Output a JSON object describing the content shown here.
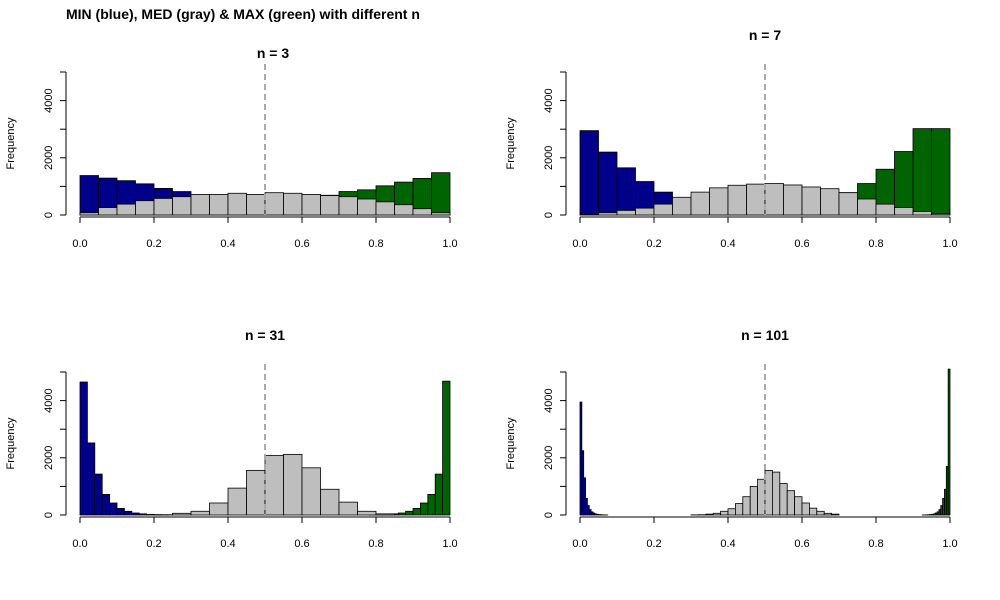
{
  "title": "MIN (blue), MED (gray) & MAX (green) with different n",
  "colors": {
    "min": "#00008B",
    "med": "#BEBEBE",
    "max": "#006400",
    "axis": "#000000",
    "refline": "#AAAAAA"
  },
  "chart_data": [
    {
      "type": "bar",
      "title": "n = 3",
      "ylabel": "Frequency",
      "xlim": [
        0,
        1
      ],
      "ylim": [
        0,
        5000
      ],
      "xticks": [
        "0.0",
        "0.2",
        "0.4",
        "0.6",
        "0.8",
        "1.0"
      ],
      "yticks": [
        "0",
        "2000",
        "4000"
      ],
      "bin_width": 0.05,
      "median_line": 0.5,
      "series": [
        {
          "key": "min",
          "bins": [
            [
              0.0,
              1380
            ],
            [
              0.05,
              1290
            ],
            [
              0.1,
              1200
            ],
            [
              0.15,
              1090
            ],
            [
              0.2,
              930
            ],
            [
              0.25,
              820
            ],
            [
              0.3,
              690
            ],
            [
              0.35,
              580
            ],
            [
              0.4,
              450
            ],
            [
              0.45,
              340
            ],
            [
              0.5,
              250
            ],
            [
              0.55,
              200
            ],
            [
              0.6,
              120
            ],
            [
              0.65,
              80
            ],
            [
              0.7,
              50
            ],
            [
              0.75,
              30
            ],
            [
              0.8,
              20
            ],
            [
              0.85,
              10
            ],
            [
              0.9,
              5
            ],
            [
              0.95,
              2
            ]
          ]
        },
        {
          "key": "max",
          "bins": [
            [
              0.0,
              2
            ],
            [
              0.05,
              5
            ],
            [
              0.1,
              10
            ],
            [
              0.15,
              20
            ],
            [
              0.2,
              30
            ],
            [
              0.25,
              50
            ],
            [
              0.3,
              80
            ],
            [
              0.35,
              120
            ],
            [
              0.4,
              200
            ],
            [
              0.45,
              250
            ],
            [
              0.5,
              340
            ],
            [
              0.55,
              450
            ],
            [
              0.6,
              580
            ],
            [
              0.65,
              690
            ],
            [
              0.7,
              820
            ],
            [
              0.75,
              880
            ],
            [
              0.8,
              1020
            ],
            [
              0.85,
              1150
            ],
            [
              0.9,
              1280
            ],
            [
              0.95,
              1480
            ]
          ]
        },
        {
          "key": "med",
          "bins": [
            [
              0.0,
              80
            ],
            [
              0.05,
              260
            ],
            [
              0.1,
              380
            ],
            [
              0.15,
              500
            ],
            [
              0.2,
              580
            ],
            [
              0.25,
              640
            ],
            [
              0.3,
              720
            ],
            [
              0.35,
              720
            ],
            [
              0.4,
              760
            ],
            [
              0.45,
              720
            ],
            [
              0.5,
              780
            ],
            [
              0.55,
              760
            ],
            [
              0.6,
              720
            ],
            [
              0.65,
              680
            ],
            [
              0.7,
              640
            ],
            [
              0.75,
              560
            ],
            [
              0.8,
              460
            ],
            [
              0.85,
              360
            ],
            [
              0.9,
              220
            ],
            [
              0.95,
              80
            ]
          ]
        }
      ]
    },
    {
      "type": "bar",
      "title": "n = 7",
      "ylabel": "Frequency",
      "xlim": [
        0,
        1
      ],
      "ylim": [
        0,
        5000
      ],
      "xticks": [
        "0.0",
        "0.2",
        "0.4",
        "0.6",
        "0.8",
        "1.0"
      ],
      "yticks": [
        "0",
        "2000",
        "4000"
      ],
      "bin_width": 0.05,
      "median_line": 0.5,
      "series": [
        {
          "key": "min",
          "bins": [
            [
              0.0,
              2950
            ],
            [
              0.05,
              2200
            ],
            [
              0.1,
              1650
            ],
            [
              0.15,
              1170
            ],
            [
              0.2,
              800
            ],
            [
              0.25,
              560
            ],
            [
              0.3,
              380
            ],
            [
              0.35,
              250
            ],
            [
              0.4,
              160
            ],
            [
              0.45,
              100
            ],
            [
              0.5,
              60
            ],
            [
              0.55,
              35
            ],
            [
              0.6,
              20
            ],
            [
              0.65,
              10
            ],
            [
              0.7,
              5
            ],
            [
              0.75,
              2
            ],
            [
              0.8,
              1
            ],
            [
              0.85,
              0
            ],
            [
              0.9,
              0
            ],
            [
              0.95,
              0
            ]
          ]
        },
        {
          "key": "max",
          "bins": [
            [
              0.0,
              0
            ],
            [
              0.05,
              0
            ],
            [
              0.1,
              0
            ],
            [
              0.15,
              1
            ],
            [
              0.2,
              2
            ],
            [
              0.25,
              5
            ],
            [
              0.3,
              10
            ],
            [
              0.35,
              20
            ],
            [
              0.4,
              35
            ],
            [
              0.45,
              60
            ],
            [
              0.5,
              100
            ],
            [
              0.55,
              160
            ],
            [
              0.6,
              250
            ],
            [
              0.65,
              380
            ],
            [
              0.7,
              780
            ],
            [
              0.75,
              1100
            ],
            [
              0.8,
              1600
            ],
            [
              0.85,
              2220
            ],
            [
              0.9,
              3020
            ],
            [
              0.95,
              3020
            ]
          ]
        },
        {
          "key": "med",
          "bins": [
            [
              0.0,
              20
            ],
            [
              0.05,
              80
            ],
            [
              0.1,
              160
            ],
            [
              0.15,
              240
            ],
            [
              0.2,
              380
            ],
            [
              0.25,
              620
            ],
            [
              0.3,
              800
            ],
            [
              0.35,
              950
            ],
            [
              0.4,
              1040
            ],
            [
              0.45,
              1080
            ],
            [
              0.5,
              1100
            ],
            [
              0.55,
              1050
            ],
            [
              0.6,
              980
            ],
            [
              0.65,
              920
            ],
            [
              0.7,
              780
            ],
            [
              0.75,
              560
            ],
            [
              0.8,
              380
            ],
            [
              0.85,
              260
            ],
            [
              0.9,
              120
            ],
            [
              0.95,
              40
            ]
          ]
        }
      ]
    },
    {
      "type": "bar",
      "title": "n = 31",
      "ylabel": "Frequency",
      "xlim": [
        0,
        1
      ],
      "ylim": [
        0,
        5000
      ],
      "xticks": [
        "0.0",
        "0.2",
        "0.4",
        "0.6",
        "0.8",
        "1.0"
      ],
      "yticks": [
        "0",
        "2000",
        "4000"
      ],
      "bin_width_min_max": 0.02,
      "bin_width_med": 0.05,
      "median_line": 0.5,
      "series": [
        {
          "key": "min",
          "bins": [
            [
              0.0,
              4650
            ],
            [
              0.02,
              2520
            ],
            [
              0.04,
              1430
            ],
            [
              0.06,
              720
            ],
            [
              0.08,
              420
            ],
            [
              0.1,
              230
            ],
            [
              0.12,
              130
            ],
            [
              0.14,
              70
            ],
            [
              0.16,
              40
            ],
            [
              0.18,
              20
            ],
            [
              0.2,
              10
            ],
            [
              0.22,
              5
            ]
          ]
        },
        {
          "key": "max",
          "bins": [
            [
              0.78,
              5
            ],
            [
              0.8,
              10
            ],
            [
              0.82,
              20
            ],
            [
              0.84,
              40
            ],
            [
              0.86,
              70
            ],
            [
              0.88,
              130
            ],
            [
              0.9,
              230
            ],
            [
              0.92,
              420
            ],
            [
              0.94,
              720
            ],
            [
              0.96,
              1430
            ],
            [
              0.98,
              4680
            ]
          ]
        },
        {
          "key": "med",
          "bins": [
            [
              0.2,
              10
            ],
            [
              0.25,
              60
            ],
            [
              0.3,
              130
            ],
            [
              0.35,
              420
            ],
            [
              0.4,
              940
            ],
            [
              0.45,
              1560
            ],
            [
              0.5,
              2080
            ],
            [
              0.55,
              2120
            ],
            [
              0.6,
              1650
            ],
            [
              0.65,
              900
            ],
            [
              0.7,
              450
            ],
            [
              0.75,
              130
            ],
            [
              0.8,
              40
            ]
          ]
        }
      ]
    },
    {
      "type": "bar",
      "title": "n = 101",
      "ylabel": "Frequency",
      "xlim": [
        0,
        1
      ],
      "ylim": [
        0,
        5000
      ],
      "xticks": [
        "0.0",
        "0.2",
        "0.4",
        "0.6",
        "0.8",
        "1.0"
      ],
      "yticks": [
        "0",
        "2000",
        "4000"
      ],
      "bin_width_min_max": 0.005,
      "bin_width_med": 0.02,
      "median_line": 0.5,
      "series": [
        {
          "key": "min",
          "bins": [
            [
              0.0,
              3950
            ],
            [
              0.005,
              2250
            ],
            [
              0.01,
              1300
            ],
            [
              0.015,
              580
            ],
            [
              0.02,
              330
            ],
            [
              0.025,
              190
            ],
            [
              0.03,
              110
            ],
            [
              0.035,
              70
            ],
            [
              0.04,
              40
            ],
            [
              0.045,
              25
            ],
            [
              0.05,
              15
            ],
            [
              0.055,
              10
            ],
            [
              0.06,
              6
            ],
            [
              0.065,
              4
            ],
            [
              0.07,
              2
            ]
          ]
        },
        {
          "key": "max",
          "bins": [
            [
              0.925,
              2
            ],
            [
              0.93,
              4
            ],
            [
              0.935,
              6
            ],
            [
              0.94,
              10
            ],
            [
              0.945,
              15
            ],
            [
              0.95,
              25
            ],
            [
              0.955,
              40
            ],
            [
              0.96,
              70
            ],
            [
              0.965,
              110
            ],
            [
              0.97,
              190
            ],
            [
              0.975,
              330
            ],
            [
              0.98,
              580
            ],
            [
              0.985,
              900
            ],
            [
              0.99,
              1700
            ],
            [
              0.995,
              5250
            ]
          ]
        },
        {
          "key": "med",
          "bins": [
            [
              0.3,
              5
            ],
            [
              0.32,
              10
            ],
            [
              0.34,
              30
            ],
            [
              0.36,
              60
            ],
            [
              0.38,
              130
            ],
            [
              0.4,
              220
            ],
            [
              0.42,
              400
            ],
            [
              0.44,
              640
            ],
            [
              0.46,
              1000
            ],
            [
              0.48,
              1250
            ],
            [
              0.5,
              1560
            ],
            [
              0.52,
              1500
            ],
            [
              0.54,
              1100
            ],
            [
              0.56,
              850
            ],
            [
              0.58,
              640
            ],
            [
              0.6,
              420
            ],
            [
              0.62,
              240
            ],
            [
              0.64,
              130
            ],
            [
              0.66,
              60
            ],
            [
              0.68,
              30
            ]
          ]
        }
      ]
    }
  ]
}
